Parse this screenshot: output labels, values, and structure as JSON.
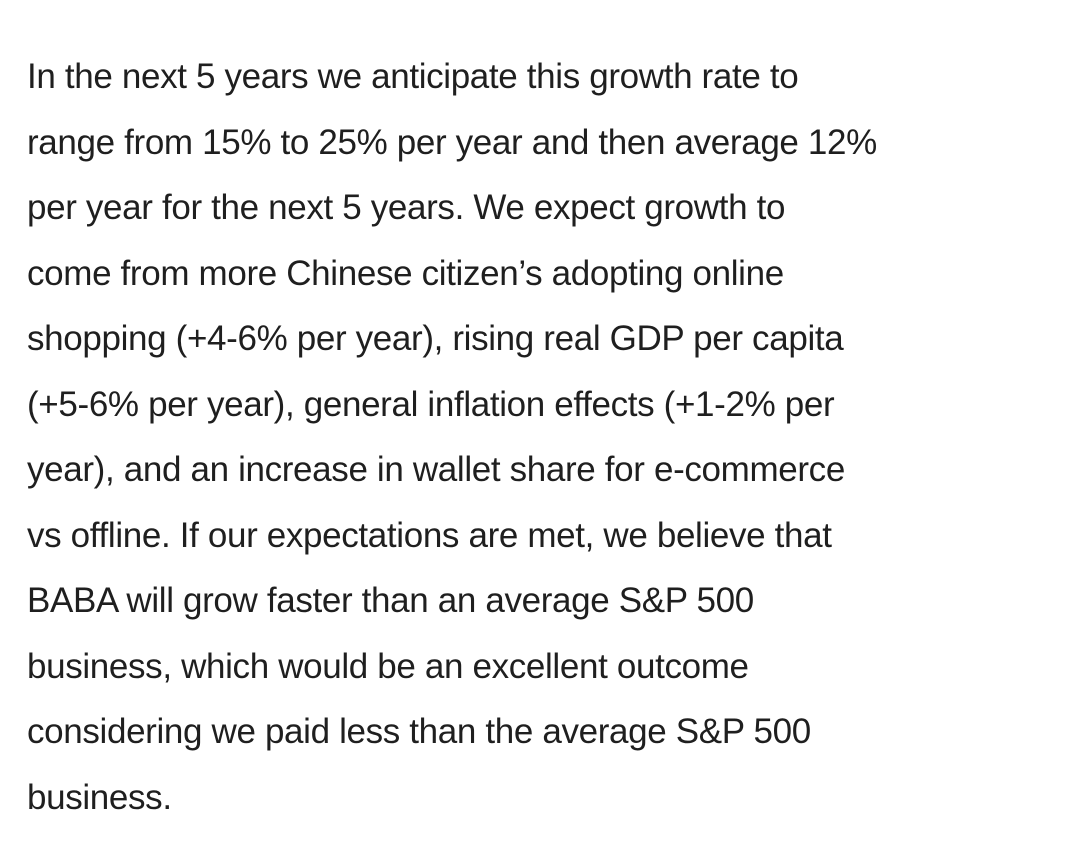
{
  "article": {
    "lines": [
      "In the next 5 years we anticipate this growth rate to",
      "range from 15% to 25% per year and then average 12%",
      "per year for the next 5 years. We expect growth to",
      "come from more Chinese citizen’s adopting online",
      "shopping (+4-6% per year), rising real GDP per capita",
      "(+5-6% per year), general inflation effects (+1-2% per",
      "year), and an increase in wallet share for e-commerce",
      "vs offline. If our expectations are met, we believe that",
      "BABA will grow faster than an average S&P 500",
      "business, which would be an excellent outcome",
      "considering we paid less than the average S&P 500",
      "business."
    ]
  },
  "colors": {
    "background": "#ffffff",
    "text": "#1f1f1f"
  }
}
